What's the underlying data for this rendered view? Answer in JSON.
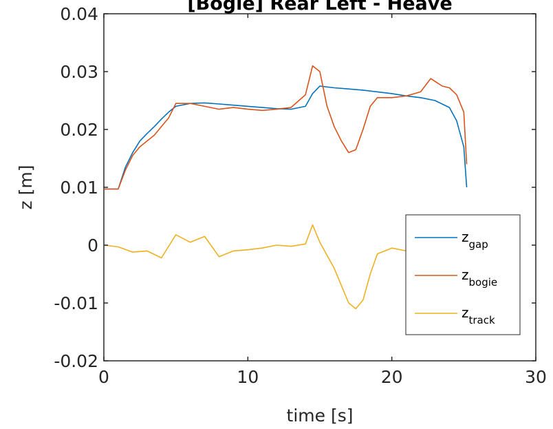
{
  "chart_data": {
    "type": "line",
    "title": "[Bogie] Rear Left - Heave",
    "xlabel": "time [s]",
    "ylabel": "z [m]",
    "xlim": [
      0,
      30
    ],
    "ylim": [
      -0.02,
      0.04
    ],
    "xticks": [
      0,
      10,
      20,
      30
    ],
    "xtick_labels": [
      "0",
      "10",
      "20",
      "30"
    ],
    "yticks": [
      -0.02,
      -0.01,
      0,
      0.01,
      0.02,
      0.03,
      0.04
    ],
    "ytick_labels": [
      "-0.02",
      "-0.01",
      "0",
      "0.01",
      "0.02",
      "0.03",
      "0.04"
    ],
    "grid": false,
    "legend_position": "bottom-right",
    "series": [
      {
        "name": "z_gap",
        "legend_main": "z",
        "legend_sub": "gap",
        "color": "#0072BD",
        "x": [
          0,
          1.0,
          1.5,
          2.0,
          2.5,
          3.0,
          3.5,
          4.0,
          4.5,
          5.0,
          6.0,
          7.0,
          8.0,
          9.0,
          10.0,
          11.0,
          12.0,
          13.0,
          14.0,
          14.5,
          15.0,
          16.0,
          17.0,
          18.0,
          19.0,
          20.0,
          21.0,
          22.0,
          23.0,
          24.0,
          24.5,
          25.0,
          25.2
        ],
        "y": [
          0.0097,
          0.0097,
          0.0135,
          0.016,
          0.018,
          0.0193,
          0.0205,
          0.0218,
          0.023,
          0.024,
          0.0245,
          0.0246,
          0.0244,
          0.0242,
          0.024,
          0.0238,
          0.0236,
          0.0235,
          0.024,
          0.0262,
          0.0275,
          0.0272,
          0.027,
          0.0268,
          0.0265,
          0.0262,
          0.0258,
          0.0255,
          0.025,
          0.0238,
          0.0215,
          0.017,
          0.01
        ]
      },
      {
        "name": "z_bogie",
        "legend_main": "z",
        "legend_sub": "bogie",
        "color": "#D95319",
        "x": [
          0,
          1.0,
          1.5,
          2.0,
          2.5,
          3.0,
          3.5,
          4.0,
          4.5,
          5.0,
          6.0,
          7.0,
          8.0,
          9.0,
          10.0,
          11.0,
          12.0,
          13.0,
          14.0,
          14.5,
          15.0,
          15.5,
          16.0,
          16.5,
          17.0,
          17.5,
          18.0,
          18.5,
          19.0,
          20.0,
          21.0,
          22.0,
          22.7,
          23.5,
          24.0,
          24.5,
          25.0,
          25.2
        ],
        "y": [
          0.0097,
          0.0097,
          0.013,
          0.0155,
          0.017,
          0.018,
          0.019,
          0.0205,
          0.022,
          0.0245,
          0.0245,
          0.024,
          0.0235,
          0.0238,
          0.0235,
          0.0233,
          0.0235,
          0.0238,
          0.026,
          0.031,
          0.03,
          0.024,
          0.0205,
          0.018,
          0.016,
          0.0165,
          0.02,
          0.024,
          0.0255,
          0.0255,
          0.0258,
          0.0265,
          0.0288,
          0.0275,
          0.0272,
          0.026,
          0.023,
          0.014
        ]
      },
      {
        "name": "z_track",
        "legend_main": "z",
        "legend_sub": "track",
        "color": "#EDB120",
        "x": [
          0,
          1.0,
          2.0,
          3.0,
          4.0,
          5.0,
          6.0,
          7.0,
          8.0,
          9.0,
          10.0,
          11.0,
          12.0,
          13.0,
          14.0,
          14.5,
          15.0,
          16.0,
          16.5,
          17.0,
          17.5,
          18.0,
          18.5,
          19.0,
          20.0,
          21.0,
          21.5
        ],
        "y": [
          0.0,
          -0.0003,
          -0.0012,
          -0.001,
          -0.0022,
          0.0018,
          0.0005,
          0.0015,
          -0.002,
          -0.001,
          -0.0008,
          -0.0005,
          0.0,
          -0.0002,
          0.0002,
          0.0035,
          0.0005,
          -0.004,
          -0.007,
          -0.01,
          -0.011,
          -0.0095,
          -0.005,
          -0.0015,
          -0.0005,
          -0.001,
          -0.0008
        ]
      }
    ]
  }
}
